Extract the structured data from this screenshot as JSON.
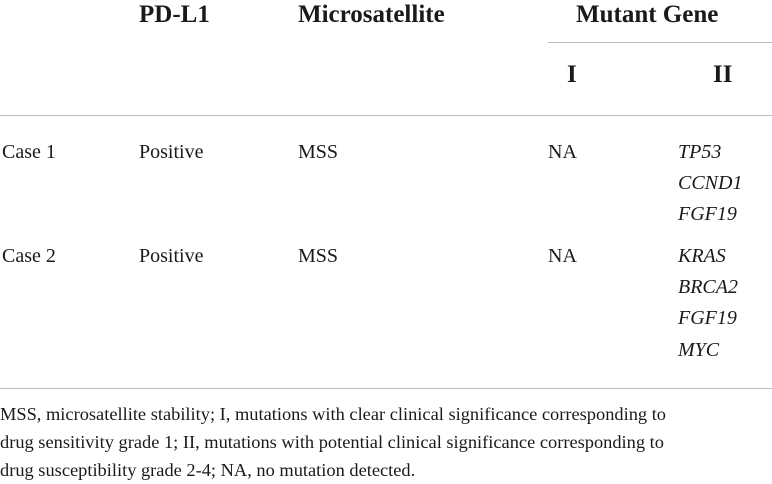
{
  "table": {
    "headers": {
      "pdl1": "PD-L1",
      "microsatellite": "Microsatellite",
      "mutant_gene": "Mutant Gene",
      "sub_i": "I",
      "sub_ii": "II"
    },
    "rows": [
      {
        "case": "Case 1",
        "pdl1": "Positive",
        "microsatellite": "MSS",
        "gene_i": "NA",
        "gene_ii": [
          "TP53",
          "CCND1",
          "FGF19"
        ]
      },
      {
        "case": "Case 2",
        "pdl1": "Positive",
        "microsatellite": "MSS",
        "gene_i": "NA",
        "gene_ii": [
          "KRAS",
          "BRCA2",
          "FGF19",
          "MYC"
        ]
      }
    ]
  },
  "footnote": {
    "lines": [
      "MSS, microsatellite stability; I, mutations with clear clinical significance corresponding to",
      "drug sensitivity grade 1; II, mutations with potential clinical significance corresponding to",
      "drug susceptibility grade 2-4; NA, no mutation detected."
    ]
  }
}
